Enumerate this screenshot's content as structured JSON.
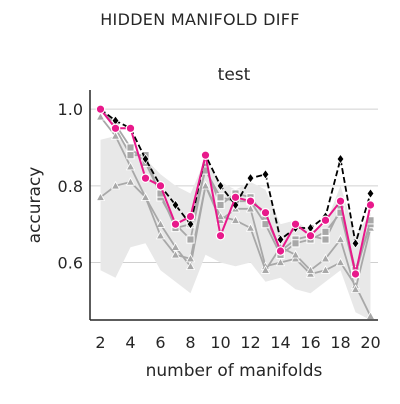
{
  "figure": {
    "suptitle": "HIDDEN MANIFOLD DIFF"
  },
  "chart_data": {
    "type": "line",
    "title": "test",
    "xlabel": "number of manifolds",
    "ylabel": "accuracy",
    "xlim": [
      1.3,
      20.5
    ],
    "ylim": [
      0.45,
      1.05
    ],
    "xticks": [
      2,
      4,
      6,
      8,
      10,
      12,
      14,
      16,
      18,
      20
    ],
    "xtick_labels": [
      "2",
      "4",
      "6",
      "8",
      "10",
      "12",
      "14",
      "16",
      "18",
      "20"
    ],
    "yticks": [
      0.6,
      0.8,
      1.0
    ],
    "ytick_labels": [
      "0.6",
      "0.8",
      "1.0"
    ],
    "grid": "horizontal",
    "legend": "none",
    "x": [
      2,
      3,
      4,
      5,
      6,
      7,
      8,
      9,
      10,
      11,
      12,
      13,
      14,
      15,
      16,
      17,
      18,
      19,
      20
    ],
    "band": {
      "color": "#e8e8e8",
      "lower": [
        0.58,
        0.56,
        0.64,
        0.65,
        0.58,
        0.55,
        0.52,
        0.62,
        0.6,
        0.59,
        0.6,
        0.55,
        0.56,
        0.53,
        0.52,
        0.55,
        0.58,
        0.47,
        0.45
      ],
      "upper": [
        0.92,
        0.93,
        0.9,
        0.87,
        0.83,
        0.8,
        0.78,
        0.87,
        0.81,
        0.79,
        0.81,
        0.79,
        0.7,
        0.71,
        0.68,
        0.7,
        0.8,
        0.67,
        0.73
      ]
    },
    "series": [
      {
        "color": "#a8a8a8",
        "marker": "triangle",
        "style": "solid",
        "values": [
          0.77,
          0.8,
          0.81,
          0.77,
          0.7,
          0.64,
          0.59,
          0.8,
          0.71,
          0.74,
          0.74,
          0.59,
          0.6,
          0.61,
          0.57,
          0.58,
          0.6,
          0.54,
          0.46
        ]
      },
      {
        "color": "#a8a8a8",
        "marker": "triangle",
        "style": "solid",
        "values": [
          0.98,
          0.93,
          0.85,
          0.77,
          0.67,
          0.62,
          0.61,
          0.8,
          0.72,
          0.71,
          0.69,
          0.58,
          0.64,
          0.62,
          0.58,
          0.61,
          0.66,
          0.53,
          0.69
        ]
      },
      {
        "color": "#a8a8a8",
        "marker": "square",
        "style": "solid",
        "values": [
          1.0,
          0.95,
          0.88,
          0.88,
          0.77,
          0.7,
          0.66,
          0.85,
          0.75,
          0.78,
          0.77,
          0.72,
          0.63,
          0.66,
          0.67,
          0.66,
          0.74,
          0.58,
          0.7
        ]
      },
      {
        "color": "#a8a8a8",
        "marker": "square",
        "style": "solid",
        "values": [
          1.0,
          0.96,
          0.9,
          0.86,
          0.78,
          0.69,
          0.7,
          0.84,
          0.77,
          0.76,
          0.76,
          0.7,
          0.62,
          0.65,
          0.66,
          0.68,
          0.73,
          0.57,
          0.71
        ]
      },
      {
        "color": "#000000",
        "marker": "diamond",
        "style": "dashed",
        "values": [
          1.0,
          0.97,
          0.95,
          0.87,
          0.8,
          0.75,
          0.7,
          0.88,
          0.8,
          0.75,
          0.82,
          0.83,
          0.66,
          0.69,
          0.69,
          0.72,
          0.87,
          0.65,
          0.78
        ]
      },
      {
        "color": "#e8198b",
        "marker": "circle",
        "style": "solid",
        "values": [
          1.0,
          0.95,
          0.95,
          0.82,
          0.8,
          0.7,
          0.72,
          0.88,
          0.67,
          0.77,
          0.76,
          0.73,
          0.63,
          0.7,
          0.67,
          0.71,
          0.76,
          0.57,
          0.75
        ]
      }
    ]
  }
}
